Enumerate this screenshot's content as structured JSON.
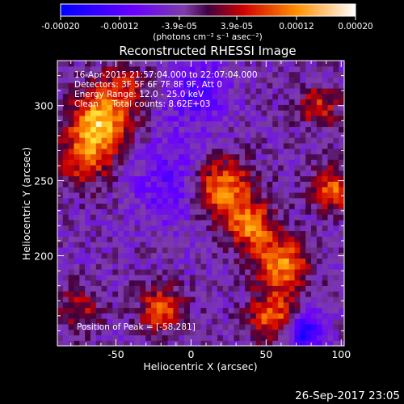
{
  "chart_data": {
    "type": "heatmap",
    "title": "Reconstructed RHESSI Image",
    "xlabel": "Heliocentric X (arcsec)",
    "ylabel": "Heliocentric Y (arcsec)",
    "xlim": [
      -89,
      102
    ],
    "ylim": [
      140,
      330
    ],
    "xticks": [
      -50,
      0,
      50,
      100
    ],
    "yticks": [
      200,
      250,
      300
    ],
    "colorbar": {
      "label": "(photons cm⁻² s⁻¹ asec⁻²)",
      "min": -0.0002,
      "max": 0.0002,
      "ticks": [
        {
          "value": -0.0002,
          "label": "-0.00020"
        },
        {
          "value": -0.00012,
          "label": "-0.00012"
        },
        {
          "value": -3.9e-05,
          "label": "-3.9e-05"
        },
        {
          "value": 3.9e-05,
          "label": "3.9e-05"
        },
        {
          "value": 0.00012,
          "label": "0.00012"
        },
        {
          "value": 0.0002,
          "label": "0.00020"
        }
      ]
    },
    "annotations": [
      "16-Apr-2015 21:57:04.000 to 22:07:04.000",
      "Detectors: 3F 5F 6F 7F 8F 9F, Att 0",
      "Energy Range: 12.0 - 25.0 keV",
      "Clean     Total counts: 8.62E+03"
    ],
    "peak_label": "Position of Peak = [-58,281]",
    "peak": [
      -58,
      281
    ],
    "sources": [
      {
        "x": -60,
        "y": 290,
        "amp": 0.00019,
        "sigma": 14
      },
      {
        "x": -70,
        "y": 265,
        "amp": 0.00012,
        "sigma": 12
      },
      {
        "x": -45,
        "y": 315,
        "amp": 8e-05,
        "sigma": 10
      },
      {
        "x": 20,
        "y": 245,
        "amp": 0.00017,
        "sigma": 14
      },
      {
        "x": 40,
        "y": 220,
        "amp": 0.00014,
        "sigma": 11
      },
      {
        "x": 60,
        "y": 195,
        "amp": 0.00016,
        "sigma": 12
      },
      {
        "x": 55,
        "y": 160,
        "amp": 0.00014,
        "sigma": 11
      },
      {
        "x": -20,
        "y": 165,
        "amp": 0.00013,
        "sigma": 10
      },
      {
        "x": 95,
        "y": 245,
        "amp": 0.00013,
        "sigma": 10
      },
      {
        "x": 85,
        "y": 300,
        "amp": 0.0001,
        "sigma": 9
      },
      {
        "x": -75,
        "y": 165,
        "amp": 8e-05,
        "sigma": 10
      },
      {
        "x": 75,
        "y": 150,
        "amp": -0.00015,
        "sigma": 9
      },
      {
        "x": -10,
        "y": 250,
        "amp": -7e-05,
        "sigma": 20
      },
      {
        "x": 5,
        "y": 310,
        "amp": -8e-05,
        "sigma": 15
      }
    ],
    "background_level": -4e-05,
    "grid": false
  },
  "footer": {
    "timestamp": "26-Sep-2017 23:05"
  }
}
